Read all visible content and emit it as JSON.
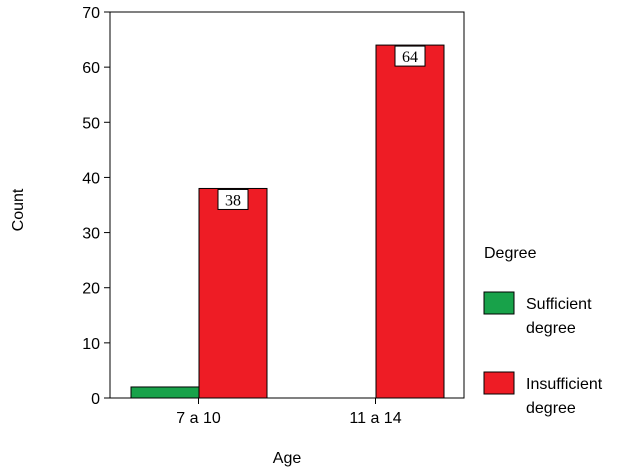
{
  "chart_data": {
    "type": "bar",
    "categories": [
      "7 a 10",
      "11 a 14"
    ],
    "series": [
      {
        "name": "Sufficient degree",
        "values": [
          2,
          0
        ],
        "color": "#18a24a"
      },
      {
        "name": "Insufficient degree",
        "values": [
          38,
          64
        ],
        "color": "#ee1c25"
      }
    ],
    "data_labels": {
      "Insufficient degree": [
        "38",
        "64"
      ]
    },
    "title": "",
    "xlabel": "Age",
    "ylabel": "Count",
    "ylim": [
      0,
      70
    ],
    "yticks": [
      0,
      10,
      20,
      30,
      40,
      50,
      60,
      70
    ],
    "grid": false,
    "legend": {
      "title": "Degree",
      "placement": "right",
      "entries": [
        {
          "lines": [
            "Sufficient",
            "degree"
          ],
          "color": "#18a24a"
        },
        {
          "lines": [
            "Insufficient",
            "degree"
          ],
          "color": "#ee1c25"
        }
      ]
    }
  }
}
